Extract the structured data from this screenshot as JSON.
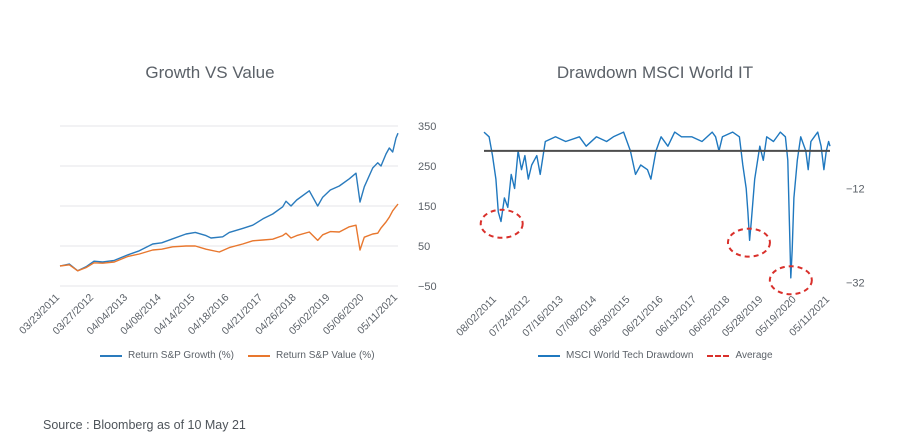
{
  "source_note": "Source : Bloomberg as of 10 May 21",
  "colors": {
    "growth": "#2a7bbd",
    "value": "#e8772e",
    "drawdown": "#1f78bf",
    "average": "#4d4d4d",
    "circle": "#d9302b",
    "grid": "#e4e6e8"
  },
  "chart_data": [
    {
      "type": "line",
      "title": "Growth VS Value",
      "ylim": [
        -50,
        350
      ],
      "yticks": [
        350,
        250,
        150,
        50,
        -50
      ],
      "ytick_labels": [
        "350",
        "250",
        "150",
        "50",
        "−50"
      ],
      "xtick_labels": [
        "03/23/2011",
        "03/27/2012",
        "04/04/2013",
        "04/08/2014",
        "04/14/2015",
        "04/18/2016",
        "04/21/2017",
        "04/26/2018",
        "05/02/2019",
        "05/06/2020",
        "05/11/2021"
      ],
      "x_years": [
        2011.22,
        2012.24,
        2013.26,
        2014.27,
        2015.28,
        2016.3,
        2017.31,
        2018.32,
        2019.33,
        2020.35,
        2021.36
      ],
      "series": [
        {
          "name": "Return S&P Growth (%)",
          "color_key": "growth",
          "points": [
            [
              2011.22,
              0
            ],
            [
              2011.5,
              5
            ],
            [
              2011.75,
              -12
            ],
            [
              2012.0,
              -2
            ],
            [
              2012.24,
              12
            ],
            [
              2012.5,
              10
            ],
            [
              2012.85,
              14
            ],
            [
              2013.26,
              28
            ],
            [
              2013.6,
              38
            ],
            [
              2014.0,
              55
            ],
            [
              2014.27,
              58
            ],
            [
              2014.6,
              68
            ],
            [
              2015.0,
              80
            ],
            [
              2015.28,
              84
            ],
            [
              2015.6,
              76
            ],
            [
              2015.75,
              70
            ],
            [
              2016.1,
              73
            ],
            [
              2016.3,
              84
            ],
            [
              2016.7,
              94
            ],
            [
              2017.0,
              102
            ],
            [
              2017.31,
              118
            ],
            [
              2017.6,
              130
            ],
            [
              2017.9,
              148
            ],
            [
              2018.0,
              162
            ],
            [
              2018.15,
              150
            ],
            [
              2018.32,
              165
            ],
            [
              2018.7,
              188
            ],
            [
              2018.95,
              150
            ],
            [
              2019.1,
              172
            ],
            [
              2019.33,
              190
            ],
            [
              2019.6,
              200
            ],
            [
              2019.9,
              218
            ],
            [
              2020.1,
              232
            ],
            [
              2020.22,
              160
            ],
            [
              2020.35,
              198
            ],
            [
              2020.6,
              245
            ],
            [
              2020.75,
              258
            ],
            [
              2020.85,
              250
            ],
            [
              2021.0,
              280
            ],
            [
              2021.1,
              295
            ],
            [
              2021.2,
              285
            ],
            [
              2021.3,
              320
            ],
            [
              2021.36,
              332
            ]
          ]
        },
        {
          "name": "Return S&P Value (%)",
          "color_key": "value",
          "points": [
            [
              2011.22,
              0
            ],
            [
              2011.5,
              3
            ],
            [
              2011.75,
              -12
            ],
            [
              2012.0,
              -4
            ],
            [
              2012.24,
              8
            ],
            [
              2012.5,
              7
            ],
            [
              2012.85,
              10
            ],
            [
              2013.26,
              24
            ],
            [
              2013.6,
              30
            ],
            [
              2014.0,
              40
            ],
            [
              2014.27,
              42
            ],
            [
              2014.6,
              48
            ],
            [
              2015.0,
              50
            ],
            [
              2015.28,
              50
            ],
            [
              2015.6,
              42
            ],
            [
              2016.0,
              35
            ],
            [
              2016.3,
              46
            ],
            [
              2016.7,
              55
            ],
            [
              2017.0,
              63
            ],
            [
              2017.31,
              65
            ],
            [
              2017.6,
              67
            ],
            [
              2017.9,
              76
            ],
            [
              2018.0,
              82
            ],
            [
              2018.15,
              70
            ],
            [
              2018.32,
              76
            ],
            [
              2018.7,
              85
            ],
            [
              2018.95,
              64
            ],
            [
              2019.1,
              78
            ],
            [
              2019.33,
              86
            ],
            [
              2019.6,
              85
            ],
            [
              2019.9,
              98
            ],
            [
              2020.1,
              102
            ],
            [
              2020.22,
              40
            ],
            [
              2020.35,
              72
            ],
            [
              2020.6,
              80
            ],
            [
              2020.75,
              82
            ],
            [
              2020.85,
              95
            ],
            [
              2021.0,
              110
            ],
            [
              2021.1,
              122
            ],
            [
              2021.2,
              138
            ],
            [
              2021.36,
              155
            ]
          ]
        }
      ]
    },
    {
      "type": "line",
      "title": "Drawdown MSCI World IT",
      "ylim": [
        -34,
        3
      ],
      "yticks": [
        -12,
        -32
      ],
      "ytick_labels": [
        "−12",
        "−32"
      ],
      "average": -4,
      "xtick_labels": [
        "08/02/2011",
        "07/24/2012",
        "07/16/2013",
        "07/08/2014",
        "06/30/2015",
        "06/21/2016",
        "06/13/2017",
        "06/05/2018",
        "05/28/2019",
        "05/19/2020",
        "05/11/2021"
      ],
      "x_years": [
        2011.58,
        2012.56,
        2013.54,
        2014.52,
        2015.5,
        2016.47,
        2017.45,
        2018.43,
        2019.4,
        2020.38,
        2021.36
      ],
      "series": [
        {
          "name": "MSCI World Tech Drawdown",
          "color_key": "drawdown",
          "points": [
            [
              2011.2,
              0
            ],
            [
              2011.35,
              -1
            ],
            [
              2011.45,
              -5
            ],
            [
              2011.55,
              -10
            ],
            [
              2011.62,
              -17
            ],
            [
              2011.7,
              -19
            ],
            [
              2011.8,
              -14
            ],
            [
              2011.9,
              -16
            ],
            [
              2012.0,
              -9
            ],
            [
              2012.1,
              -12
            ],
            [
              2012.2,
              -4
            ],
            [
              2012.3,
              -8
            ],
            [
              2012.4,
              -5
            ],
            [
              2012.5,
              -10
            ],
            [
              2012.6,
              -7
            ],
            [
              2012.75,
              -5
            ],
            [
              2012.85,
              -9
            ],
            [
              2013.0,
              -2
            ],
            [
              2013.3,
              -1
            ],
            [
              2013.6,
              -2
            ],
            [
              2014.0,
              -1
            ],
            [
              2014.2,
              -3
            ],
            [
              2014.5,
              -1
            ],
            [
              2014.8,
              -2
            ],
            [
              2015.0,
              -1
            ],
            [
              2015.3,
              0
            ],
            [
              2015.5,
              -4
            ],
            [
              2015.65,
              -9
            ],
            [
              2015.8,
              -7
            ],
            [
              2016.0,
              -8
            ],
            [
              2016.1,
              -10
            ],
            [
              2016.25,
              -4
            ],
            [
              2016.4,
              -1
            ],
            [
              2016.6,
              -3
            ],
            [
              2016.8,
              0
            ],
            [
              2017.0,
              -1
            ],
            [
              2017.3,
              -1
            ],
            [
              2017.6,
              -2
            ],
            [
              2017.9,
              0
            ],
            [
              2018.0,
              -1
            ],
            [
              2018.1,
              -4
            ],
            [
              2018.2,
              -1
            ],
            [
              2018.5,
              0
            ],
            [
              2018.7,
              -1
            ],
            [
              2018.8,
              -7
            ],
            [
              2018.9,
              -12
            ],
            [
              2018.95,
              -17
            ],
            [
              2019.0,
              -23
            ],
            [
              2019.05,
              -19
            ],
            [
              2019.15,
              -10
            ],
            [
              2019.3,
              -3
            ],
            [
              2019.4,
              -6
            ],
            [
              2019.5,
              -1
            ],
            [
              2019.7,
              -2
            ],
            [
              2019.9,
              0
            ],
            [
              2020.05,
              -1
            ],
            [
              2020.12,
              -6
            ],
            [
              2020.17,
              -20
            ],
            [
              2020.21,
              -31
            ],
            [
              2020.25,
              -25
            ],
            [
              2020.3,
              -14
            ],
            [
              2020.4,
              -6
            ],
            [
              2020.5,
              -1
            ],
            [
              2020.65,
              -4
            ],
            [
              2020.72,
              -8
            ],
            [
              2020.8,
              -2
            ],
            [
              2020.9,
              -1
            ],
            [
              2021.0,
              0
            ],
            [
              2021.1,
              -3
            ],
            [
              2021.18,
              -8
            ],
            [
              2021.25,
              -4
            ],
            [
              2021.32,
              -2
            ],
            [
              2021.36,
              -3
            ]
          ]
        },
        {
          "name": "Average",
          "color_key": "circle"
        }
      ]
    }
  ]
}
